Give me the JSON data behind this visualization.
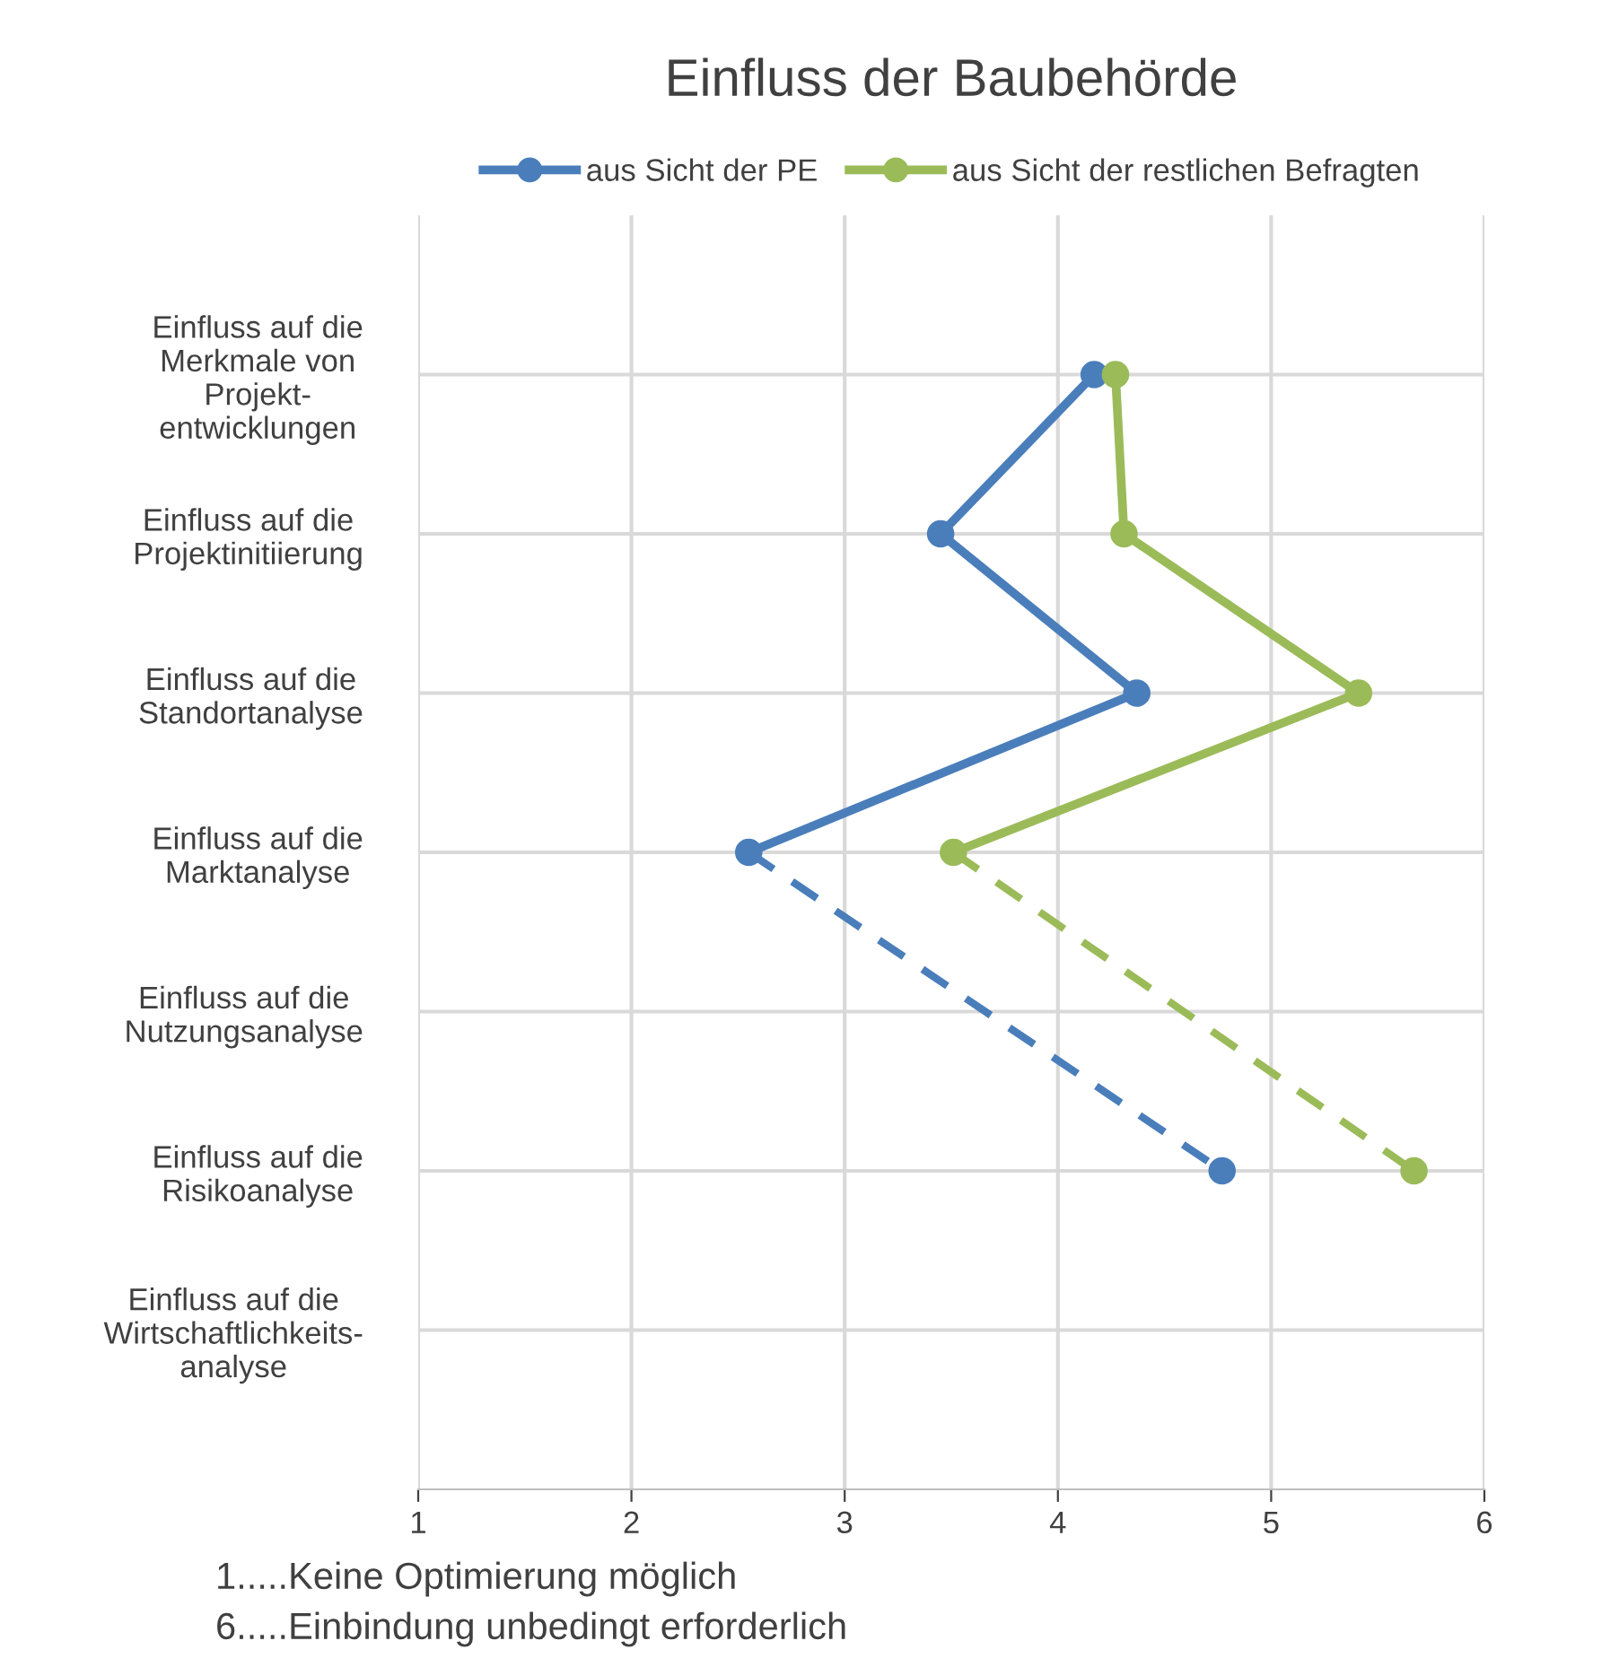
{
  "chart_data": {
    "type": "line",
    "orientation": "horizontal",
    "title": "Einfluss der Baubehörde",
    "categories": [
      "Einfluss auf die\nMerkmale von\nProjekt-\nentwicklungen",
      "Einfluss auf die\nProjektinitiierung",
      "Einfluss auf die\nStandortanalyse",
      "Einfluss auf die\nMarktanalyse",
      "Einfluss auf die\nNutzungsanalyse",
      "Einfluss auf die\nRisikoanalyse",
      "Einfluss auf die\nWirtschaftlichkeits-\nanalyse"
    ],
    "series": [
      {
        "name": "aus Sicht der PE",
        "color": "#4a7ebb",
        "values": [
          4.17,
          3.45,
          4.37,
          2.55,
          null,
          4.77,
          null
        ]
      },
      {
        "name": "aus Sicht der restlichen Befragten",
        "color": "#9bbb59",
        "values": [
          4.27,
          4.31,
          5.41,
          3.51,
          null,
          5.67,
          null
        ]
      }
    ],
    "xlim": [
      1,
      6
    ],
    "xticks": [
      1,
      2,
      3,
      4,
      5,
      6
    ],
    "grid": true,
    "legend": "top",
    "marker": "circle",
    "annotations": [
      "1.....Keine Optimierung möglich",
      "6.....Einbindung unbedingt erforderlich"
    ]
  }
}
